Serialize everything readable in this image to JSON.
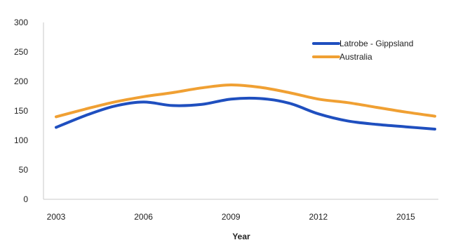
{
  "chart_data": {
    "type": "line",
    "title": "",
    "xlabel": "Year",
    "ylabel": "",
    "xlim": [
      2003,
      2016
    ],
    "ylim": [
      0,
      300
    ],
    "x_ticks": [
      2003,
      2006,
      2009,
      2012,
      2015
    ],
    "x_tick_labels": [
      "2003",
      "2006",
      "2009",
      "2012",
      "2015"
    ],
    "y_ticks": [
      0,
      50,
      100,
      150,
      200,
      250,
      300
    ],
    "y_tick_labels": [
      "0",
      "50",
      "100",
      "150",
      "200",
      "250",
      "300"
    ],
    "grid": false,
    "legend_position": "top-right",
    "x": [
      2003,
      2004,
      2005,
      2006,
      2007,
      2008,
      2009,
      2010,
      2011,
      2012,
      2013,
      2014,
      2015,
      2016
    ],
    "series": [
      {
        "name": "Latrobe - Gippsland",
        "color": "#1f4fbf",
        "values": [
          122,
          142,
          158,
          165,
          159,
          161,
          170,
          171,
          163,
          145,
          133,
          127,
          123,
          119
        ]
      },
      {
        "name": "Australia",
        "color": "#f0a033",
        "values": [
          140,
          153,
          165,
          174,
          181,
          189,
          194,
          190,
          181,
          170,
          164,
          156,
          148,
          141
        ]
      }
    ]
  }
}
